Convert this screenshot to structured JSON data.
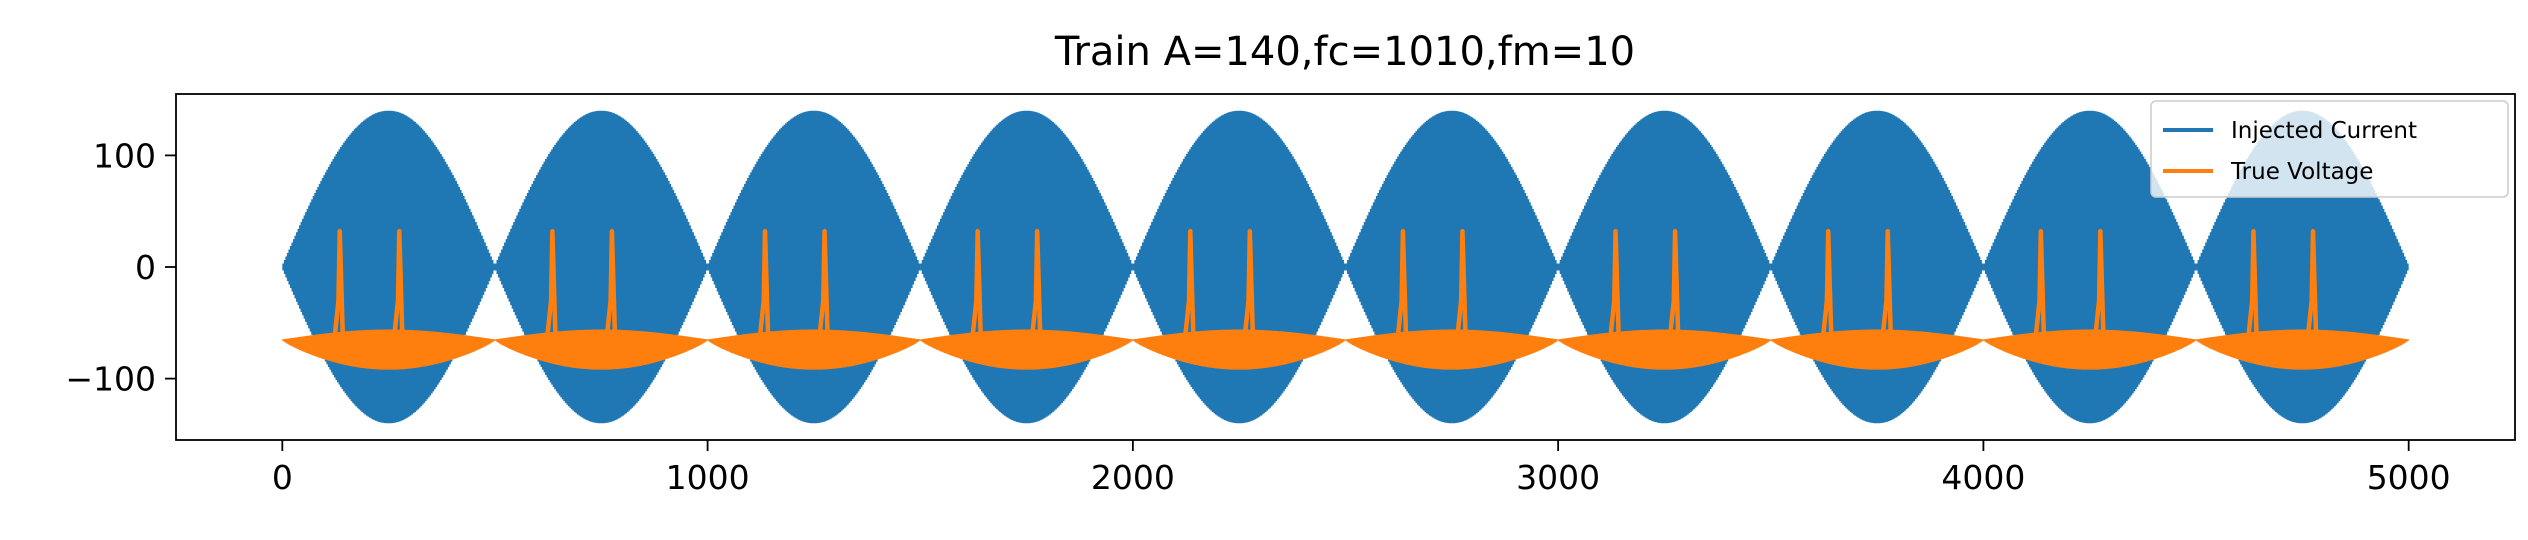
{
  "chart_data": {
    "type": "line",
    "title": "Train A=140,fc=1010,fm=10",
    "xlabel": "",
    "ylabel": "",
    "xlim": [
      -250,
      5250
    ],
    "ylim": [
      -155,
      155
    ],
    "x_ticks": [
      0,
      1000,
      2000,
      3000,
      4000,
      5000
    ],
    "x_tick_labels": [
      "0",
      "1000",
      "2000",
      "3000",
      "4000",
      "5000"
    ],
    "y_ticks": [
      -100,
      0,
      100
    ],
    "y_tick_labels": [
      "−100",
      "0",
      "100"
    ],
    "grid": false,
    "legend_position": "top-right",
    "series": [
      {
        "name": "Injected Current",
        "color": "#1f77b4",
        "kind": "amplitude-modulated-sine",
        "amplitude": 140,
        "carrier_hz": 1010,
        "modulation_hz": 10,
        "x_range": [
          0,
          5000
        ],
        "envelope_period": 500
      },
      {
        "name": "True Voltage",
        "color": "#ff7f0e",
        "kind": "membrane-voltage",
        "x_range": [
          0,
          5000
        ],
        "resting_value": -65,
        "oscillation_min": -92,
        "oscillation_max": -55,
        "spike_peak": 32,
        "spike_times": [
          135,
          275,
          635,
          775,
          1135,
          1275,
          1635,
          1775,
          2135,
          2275,
          2635,
          2775,
          3135,
          3275,
          3635,
          3775,
          4135,
          4275,
          4635,
          4775
        ]
      }
    ]
  }
}
